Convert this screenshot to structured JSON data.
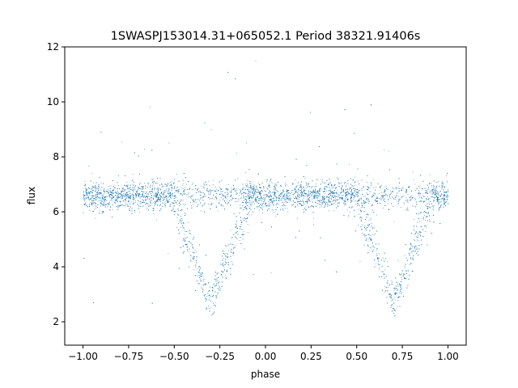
{
  "chart_data": {
    "type": "scatter",
    "title": "1SWASPJ153014.31+065052.1 Period 38321.91406s",
    "xlabel": "phase",
    "ylabel": "flux",
    "xlim": [
      -1.1,
      1.1
    ],
    "ylim": [
      1.15,
      12.0
    ],
    "xticks": [
      -1.0,
      -0.75,
      -0.5,
      -0.25,
      0.0,
      0.25,
      0.5,
      0.75,
      1.0
    ],
    "xtick_labels": [
      "−1.00",
      "−0.75",
      "−0.50",
      "−0.25",
      "0.00",
      "0.25",
      "0.50",
      "0.75",
      "1.00"
    ],
    "yticks": [
      2,
      4,
      6,
      8,
      10,
      12
    ],
    "ytick_labels": [
      "2",
      "4",
      "6",
      "8",
      "10",
      "12"
    ],
    "grid": false,
    "legend": "none",
    "marker_color": "#1f77b4",
    "series": [
      {
        "points_description": "dense band of phase-folded flux",
        "baseline_flux": 6.6,
        "baseline_spread": 0.45,
        "eclipse_centers": [
          -0.3,
          0.7
        ],
        "eclipse_min_flux": 2.7,
        "x": [
          -1.0,
          -0.9,
          -0.8,
          -0.7,
          -0.6,
          -0.5,
          -0.45,
          -0.4,
          -0.35,
          -0.3,
          -0.25,
          -0.2,
          -0.15,
          -0.1,
          0.0,
          0.1,
          0.2,
          0.3,
          0.4,
          0.5,
          0.55,
          0.6,
          0.65,
          0.7,
          0.75,
          0.8,
          0.85,
          0.9,
          1.0
        ],
        "y": [
          6.6,
          6.6,
          6.7,
          6.6,
          6.5,
          6.2,
          5.0,
          4.0,
          3.2,
          2.7,
          3.2,
          4.0,
          5.5,
          6.5,
          6.6,
          6.6,
          6.7,
          6.6,
          6.5,
          6.2,
          5.0,
          4.0,
          3.2,
          2.7,
          3.2,
          4.0,
          5.5,
          6.5,
          6.6
        ]
      }
    ]
  }
}
